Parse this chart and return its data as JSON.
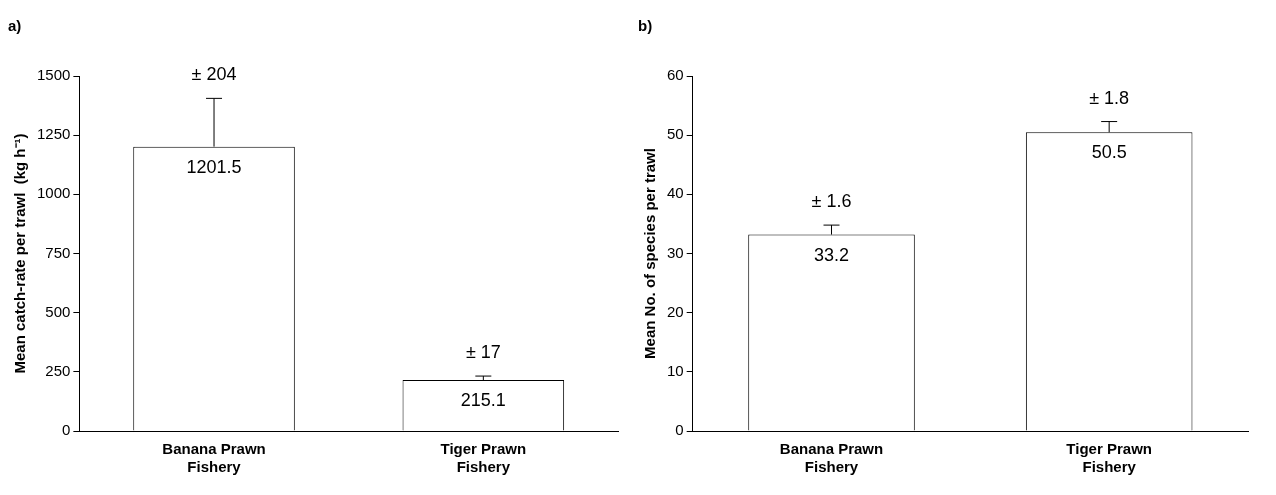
{
  "chart_data": [
    {
      "type": "bar",
      "title": "a)",
      "ylabel": "Mean catch-rate per trawl  (kg h⁻¹)",
      "categories": [
        "Banana Prawn Fishery",
        "Tiger Prawn Fishery"
      ],
      "values": [
        1201.5,
        215.1
      ],
      "errors": [
        [
          1201.5,
          1405.5
        ],
        [
          215.1,
          232.1
        ]
      ],
      "color": "#ffffff",
      "ylim": [
        0,
        1500
      ],
      "yticks": [
        0,
        250,
        500,
        750,
        1000,
        1250,
        1500
      ],
      "grid": false,
      "legend": false,
      "data_labels": true,
      "annotations": [
        {
          "text": "± 204",
          "x": "Banana Prawn Fishery",
          "y": 1405.5
        },
        {
          "text": "± 17",
          "x": "Tiger Prawn Fishery",
          "y": 232.1
        }
      ]
    },
    {
      "type": "bar",
      "title": "b)",
      "ylabel": "Mean No. of species per trawl",
      "categories": [
        "Banana Prawn Fishery",
        "Tiger Prawn Fishery"
      ],
      "values": [
        33.2,
        50.5
      ],
      "errors": [
        [
          33.2,
          34.8
        ],
        [
          50.5,
          52.3
        ]
      ],
      "color": "#ffffff",
      "ylim": [
        0,
        60
      ],
      "yticks": [
        0,
        10,
        20,
        30,
        40,
        50,
        60
      ],
      "grid": false,
      "legend": false,
      "data_labels": true,
      "annotations": [
        {
          "text": "± 1.6",
          "x": "Banana Prawn Fishery",
          "y": 34.8
        },
        {
          "text": "± 1.8",
          "x": "Tiger Prawn Fishery",
          "y": 52.3
        }
      ]
    }
  ]
}
